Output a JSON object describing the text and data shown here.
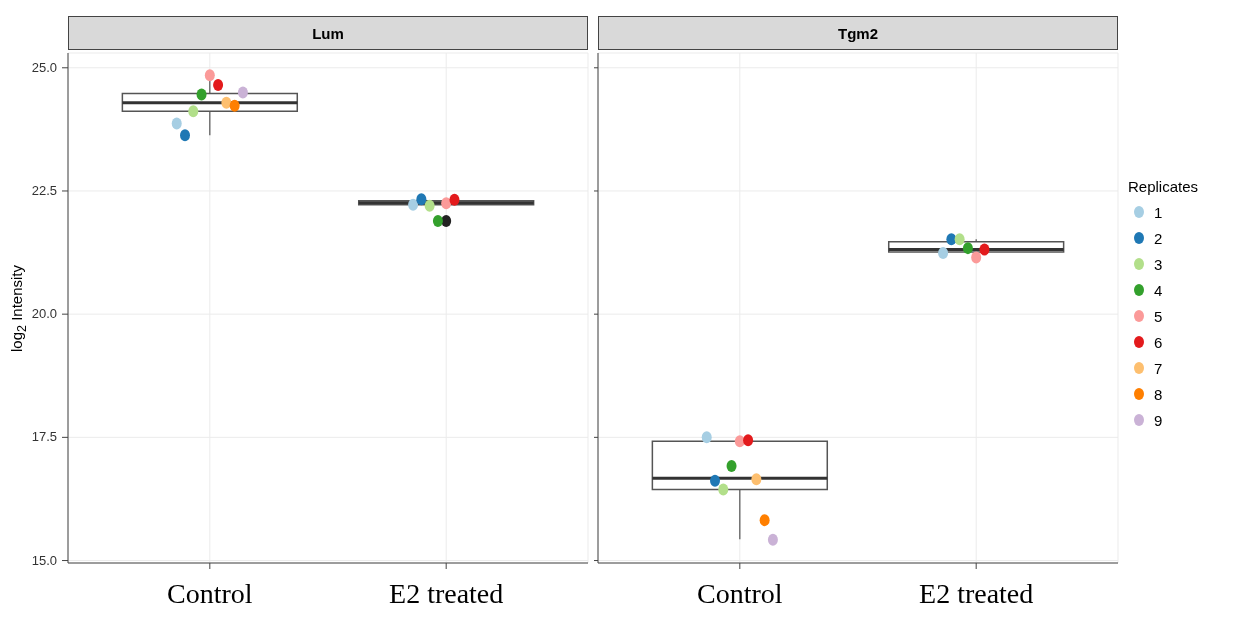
{
  "chart_data": [
    {
      "type": "box",
      "title": "Lum",
      "ylabel": "log$_{2}$ Intensity",
      "categories": [
        "Control",
        "E2 treated"
      ],
      "boxes": [
        {
          "low": 23.63,
          "q1": 24.12,
          "median": 24.29,
          "q3": 24.48,
          "high": 24.85
        },
        {
          "low": 22.22,
          "q1": 22.22,
          "median": 22.26,
          "q3": 22.3,
          "high": 22.33,
          "outliers": [
            21.89
          ]
        }
      ],
      "series": [
        {
          "type": "scatter",
          "color": "#a6cee3",
          "x": [
            "Control",
            "E2 treated"
          ],
          "values": [
            23.87,
            22.22
          ]
        },
        {
          "type": "scatter",
          "color": "#1f78b4",
          "x": [
            "Control",
            "E2 treated"
          ],
          "values": [
            23.63,
            22.33
          ]
        },
        {
          "type": "scatter",
          "color": "#b2df8a",
          "x": [
            "Control",
            "E2 treated"
          ],
          "values": [
            24.12,
            22.2
          ]
        },
        {
          "type": "scatter",
          "color": "#33a02c",
          "x": [
            "Control",
            "E2 treated"
          ],
          "values": [
            24.46,
            21.89
          ]
        },
        {
          "type": "scatter",
          "color": "#fb9a99",
          "x": [
            "Control",
            "E2 treated"
          ],
          "values": [
            24.85,
            22.25
          ]
        },
        {
          "type": "scatter",
          "color": "#e31a1c",
          "x": [
            "Control",
            "E2 treated"
          ],
          "values": [
            24.65,
            22.32
          ]
        },
        {
          "type": "scatter",
          "color": "#fdbf6f",
          "x": [
            "Control",
            "E2 treated"
          ],
          "values": [
            24.29,
            null
          ]
        },
        {
          "type": "scatter",
          "color": "#ff7f00",
          "x": [
            "Control",
            "E2 treated"
          ],
          "values": [
            24.23,
            null
          ]
        },
        {
          "type": "scatter",
          "color": "#cab2d6",
          "x": [
            "Control",
            "E2 treated"
          ],
          "values": [
            24.5,
            null
          ]
        }
      ],
      "ylim": [
        14.95,
        25.3
      ],
      "yticks": [
        {
          "value": 15,
          "label": "15.0"
        },
        {
          "value": 17.5,
          "label": "17.5"
        },
        {
          "value": 20,
          "label": "20.0"
        },
        {
          "value": 22.5,
          "label": "22.5"
        },
        {
          "value": 25,
          "label": "25.0"
        }
      ],
      "grid": true,
      "marker": "circle",
      "legend": false
    },
    {
      "type": "box",
      "title": "Tgm2",
      "legend_title": "Replicates",
      "categories": [
        "Control",
        "E2 treated"
      ],
      "boxes": [
        {
          "low": 15.43,
          "q1": 16.44,
          "median": 16.67,
          "q3": 17.42,
          "high": 17.5
        },
        {
          "low": 21.17,
          "q1": 21.26,
          "median": 21.31,
          "q3": 21.47,
          "high": 21.52
        }
      ],
      "series": [
        {
          "type": "scatter",
          "name": "1",
          "color": "#a6cee3",
          "x": [
            "Control",
            "E2 treated"
          ],
          "values": [
            17.5,
            21.24
          ]
        },
        {
          "type": "scatter",
          "name": "2",
          "color": "#1f78b4",
          "x": [
            "Control",
            "E2 treated"
          ],
          "values": [
            16.62,
            21.52
          ]
        },
        {
          "type": "scatter",
          "name": "3",
          "color": "#b2df8a",
          "x": [
            "Control",
            "E2 treated"
          ],
          "values": [
            16.44,
            21.52
          ]
        },
        {
          "type": "scatter",
          "name": "4",
          "color": "#33a02c",
          "x": [
            "Control",
            "E2 treated"
          ],
          "values": [
            16.92,
            21.34
          ]
        },
        {
          "type": "scatter",
          "name": "5",
          "color": "#fb9a99",
          "x": [
            "Control",
            "E2 treated"
          ],
          "values": [
            17.42,
            21.15
          ]
        },
        {
          "type": "scatter",
          "name": "6",
          "color": "#e31a1c",
          "x": [
            "Control",
            "E2 treated"
          ],
          "values": [
            17.44,
            21.31
          ]
        },
        {
          "type": "scatter",
          "name": "7",
          "color": "#fdbf6f",
          "x": [
            "Control",
            "E2 treated"
          ],
          "values": [
            16.65,
            null
          ]
        },
        {
          "type": "scatter",
          "name": "8",
          "color": "#ff7f00",
          "x": [
            "Control",
            "E2 treated"
          ],
          "values": [
            15.82,
            null
          ]
        },
        {
          "type": "scatter",
          "name": "9",
          "color": "#cab2d6",
          "x": [
            "Control",
            "E2 treated"
          ],
          "values": [
            15.42,
            null
          ]
        }
      ],
      "ylim": [
        14.95,
        25.3
      ],
      "yticks": [
        {
          "value": 15,
          "label": null
        },
        {
          "value": 17.5,
          "label": null
        },
        {
          "value": 20,
          "label": null
        },
        {
          "value": 22.5,
          "label": null
        },
        {
          "value": 25,
          "label": null
        }
      ],
      "tick_labels": "x",
      "grid": true,
      "marker": "circle",
      "legend": "right"
    }
  ]
}
